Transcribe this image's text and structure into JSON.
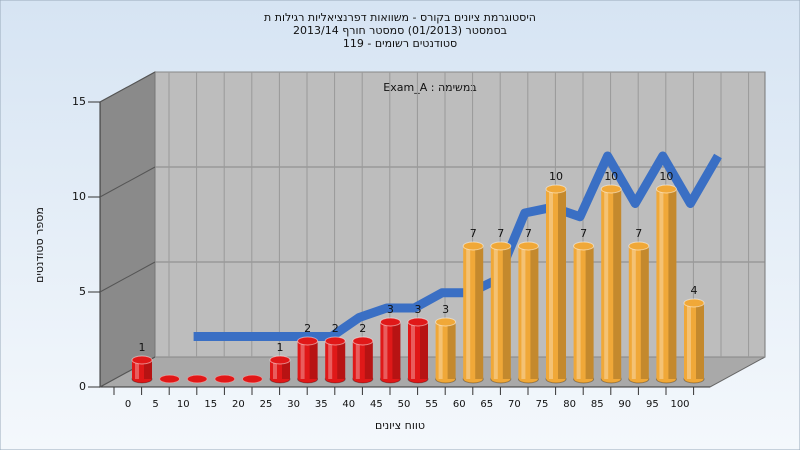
{
  "chart_data": {
    "type": "bar3d",
    "title_lines": [
      "היסטוגרמת ציונים בקורס - משוואות דפרנציאליות רגילות ת",
      "בסמסטר  (01/2013)  סמסטר חורף 2013/14",
      "סטודנטים רשומים - 119"
    ],
    "annotation": "Exam_A : במשימה",
    "x_label": "טווח ציונים",
    "y_label": "מספר סטודנטים",
    "categories": [
      "0",
      "5",
      "10",
      "15",
      "20",
      "25",
      "30",
      "35",
      "40",
      "45",
      "50",
      "55",
      "60",
      "65",
      "70",
      "75",
      "80",
      "85",
      "90",
      "95",
      "100"
    ],
    "values": [
      1,
      0,
      0,
      0,
      0,
      1,
      2,
      2,
      2,
      3,
      3,
      3,
      7,
      7,
      7,
      10,
      7,
      10,
      7,
      10,
      4
    ],
    "colors": [
      "#e01818",
      "#e01818",
      "#e01818",
      "#e01818",
      "#e01818",
      "#e01818",
      "#e01818",
      "#e01818",
      "#e01818",
      "#e01818",
      "#e01818",
      "#f0a838",
      "#f0a838",
      "#f0a838",
      "#f0a838",
      "#f0a838",
      "#f0a838",
      "#f0a838",
      "#f0a838",
      "#f0a838",
      "#f0a838"
    ],
    "curve": {
      "color": "#3a6fc4",
      "values": [
        null,
        1.5,
        1.5,
        1.5,
        1.5,
        1.5,
        1.5,
        2.5,
        3,
        3,
        3.8,
        3.8,
        4.5,
        8,
        8.3,
        7.8,
        11,
        8.5,
        11,
        8.5,
        11
      ]
    },
    "ylim": [
      0,
      15
    ],
    "yticks": [
      0,
      5,
      10,
      15
    ],
    "grid": true
  }
}
